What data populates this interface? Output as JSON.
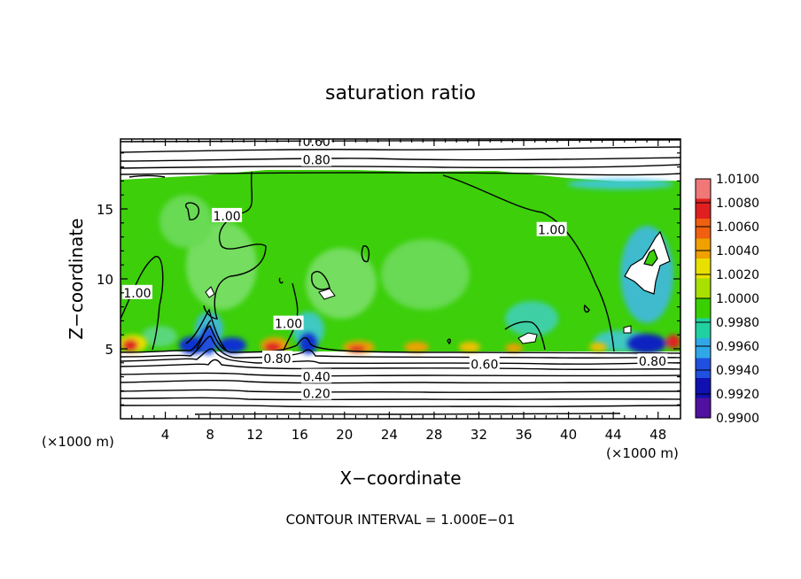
{
  "chart_data": {
    "type": "heatmap",
    "title": "saturation ratio",
    "xlabel": "X−coordinate",
    "ylabel": "Z−coordinate",
    "x_unit_left": "(×1000 m)",
    "x_unit_right": "(×1000 m)",
    "footer": "CONTOUR INTERVAL = 1.000E−01",
    "xlim": [
      0,
      50
    ],
    "ylim": [
      0,
      20
    ],
    "x_ticks": [
      4,
      8,
      12,
      16,
      20,
      24,
      28,
      32,
      36,
      40,
      44,
      48
    ],
    "x_tick_labels": [
      "4",
      "8",
      "12",
      "16",
      "20",
      "24",
      "28",
      "32",
      "36",
      "40",
      "44",
      "48"
    ],
    "y_ticks": [
      5,
      10,
      15
    ],
    "y_tick_labels": [
      "5",
      "10",
      "15"
    ],
    "colorbar": {
      "min": 0.99,
      "max": 1.01,
      "labels": [
        "1.0100",
        "1.0080",
        "1.0060",
        "1.0040",
        "1.0020",
        "1.0000",
        "0.9980",
        "0.9960",
        "0.9940",
        "0.9920",
        "0.9900"
      ],
      "colors": [
        "#f07878",
        "#e02020",
        "#f06010",
        "#f0a000",
        "#e8e000",
        "#a8e000",
        "#38d000",
        "#20d0a0",
        "#30a8e8",
        "#2050e0",
        "#1010b0",
        "#5010a0"
      ]
    },
    "contour_labels": [
      {
        "text": "0.60",
        "x": 17.5,
        "y": 19.8
      },
      {
        "text": "0.80",
        "x": 17.5,
        "y": 18.5
      },
      {
        "text": "1.00",
        "x": 9.5,
        "y": 14.5
      },
      {
        "text": "1.00",
        "x": 38.5,
        "y": 13.5
      },
      {
        "text": "1.00",
        "x": 1.5,
        "y": 9.0
      },
      {
        "text": "1.00",
        "x": 15.0,
        "y": 6.8
      },
      {
        "text": "0.80",
        "x": 14.0,
        "y": 4.3
      },
      {
        "text": "0.40",
        "x": 17.5,
        "y": 3.0
      },
      {
        "text": "0.20",
        "x": 17.5,
        "y": 1.8
      },
      {
        "text": "0.60",
        "x": 32.5,
        "y": 3.9
      },
      {
        "text": "0.80",
        "x": 47.5,
        "y": 4.1
      }
    ]
  }
}
